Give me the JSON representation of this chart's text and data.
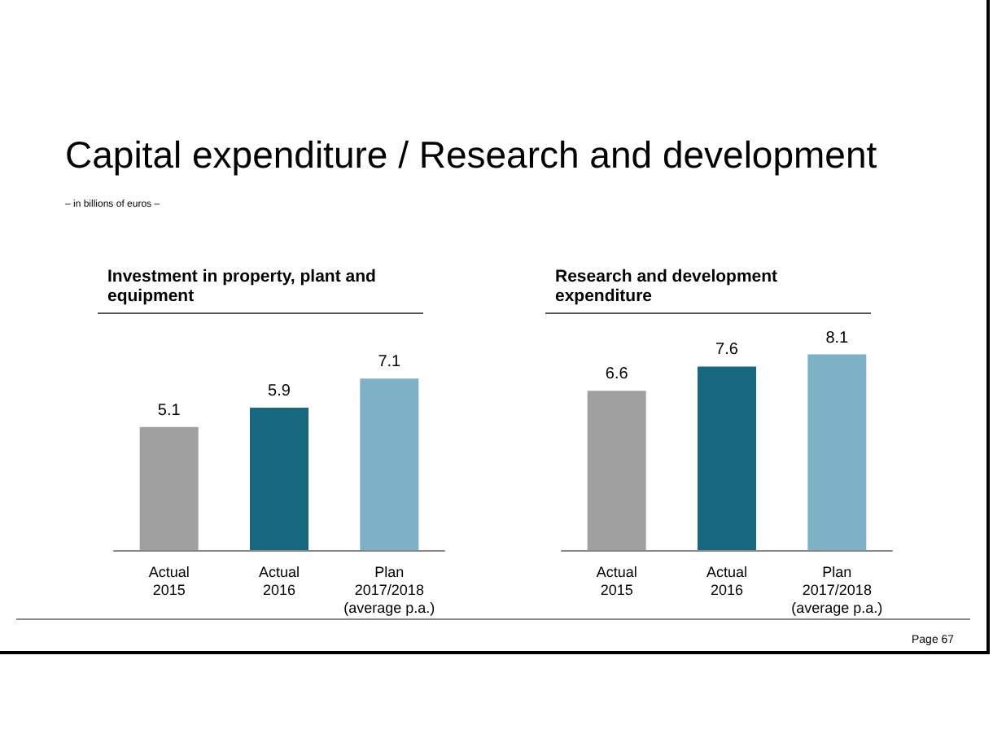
{
  "chart_data": [
    {
      "type": "bar",
      "title": "Investment in property, plant and equipment",
      "annotations": [
        "Capital expenditure / Research and development",
        "– in billions of euros –",
        "Page 67"
      ],
      "categories": [
        "Actual\n2015",
        "Actual\n2016",
        "Plan\n2017/2018\n(average p.a.)"
      ],
      "values": [
        5.1,
        5.9,
        7.1
      ],
      "colors": [
        "#a0a0a0",
        "#17687f",
        "#7fb1c6"
      ],
      "data_labels": true
    },
    {
      "type": "bar",
      "title": "Research and development expenditure",
      "categories": [
        "Actual\n2015",
        "Actual\n2016",
        "Plan\n2017/2018\n(average p.a.)"
      ],
      "values": [
        6.6,
        7.6,
        8.1
      ],
      "colors": [
        "#a0a0a0",
        "#17687f",
        "#7fb1c6"
      ],
      "data_labels": true
    }
  ]
}
